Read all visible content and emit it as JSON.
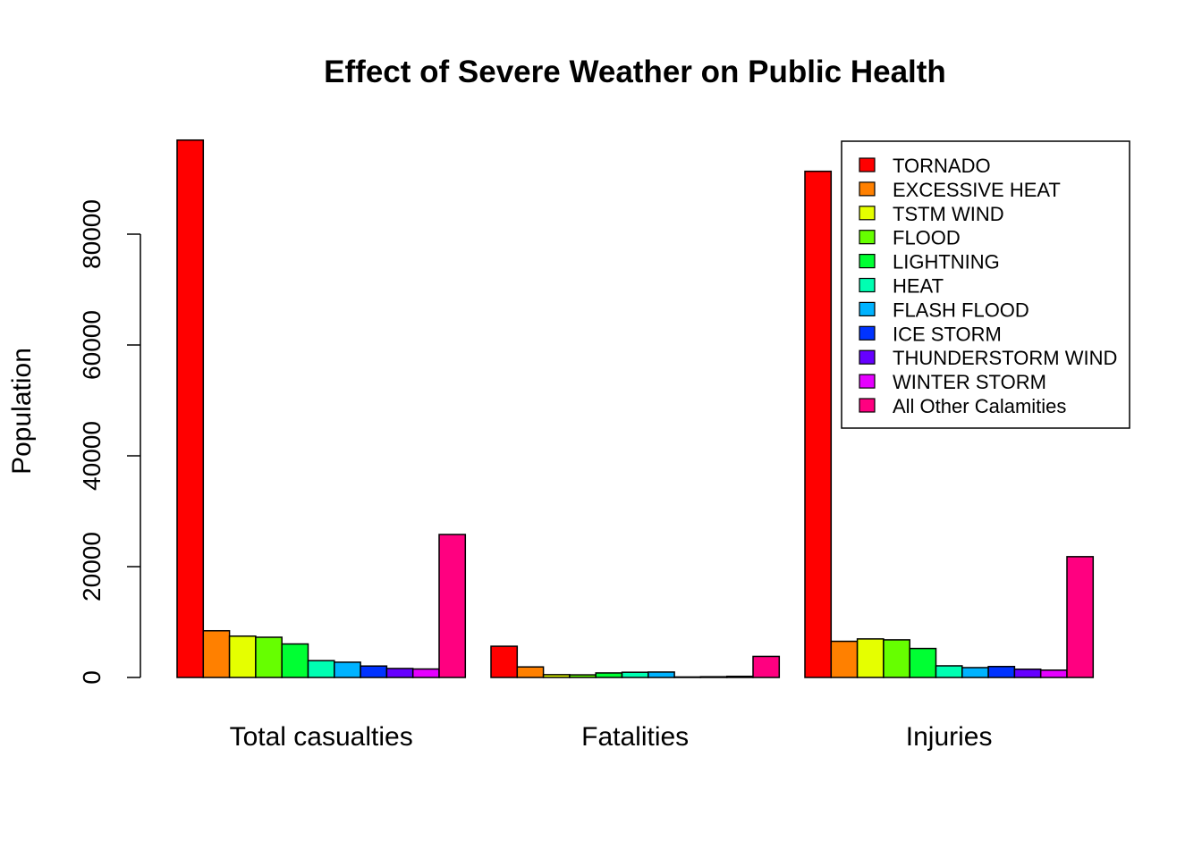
{
  "chart_data": {
    "type": "bar",
    "title": "Effect of Severe Weather on Public Health",
    "xlabel": "",
    "ylabel": "Population",
    "ylim": [
      0,
      97000
    ],
    "yticks": [
      0,
      20000,
      40000,
      60000,
      80000
    ],
    "ytick_labels": [
      "0",
      "20000",
      "40000",
      "60000",
      "80000"
    ],
    "groups": [
      "Total casualties",
      "Fatalities",
      "Injuries"
    ],
    "legend_position": "top-right",
    "grid": false,
    "series": [
      {
        "name": "TORNADO",
        "color": "#FF0000",
        "values": [
          96979,
          5633,
          91346
        ]
      },
      {
        "name": "EXCESSIVE HEAT",
        "color": "#FF8000",
        "values": [
          8428,
          1903,
          6525
        ]
      },
      {
        "name": "TSTM WIND",
        "color": "#E5FF00",
        "values": [
          7461,
          504,
          6957
        ]
      },
      {
        "name": "FLOOD",
        "color": "#66FF00",
        "values": [
          7259,
          470,
          6789
        ]
      },
      {
        "name": "LIGHTNING",
        "color": "#00FF33",
        "values": [
          6046,
          816,
          5230
        ]
      },
      {
        "name": "HEAT",
        "color": "#00FFB2",
        "values": [
          3037,
          937,
          2100
        ]
      },
      {
        "name": "FLASH FLOOD",
        "color": "#00B3FF",
        "values": [
          2755,
          978,
          1777
        ]
      },
      {
        "name": "ICE STORM",
        "color": "#0033FF",
        "values": [
          2064,
          89,
          1975
        ]
      },
      {
        "name": "THUNDERSTORM WIND",
        "color": "#6600FF",
        "values": [
          1621,
          133,
          1488
        ]
      },
      {
        "name": "WINTER STORM",
        "color": "#E500FF",
        "values": [
          1527,
          206,
          1321
        ]
      },
      {
        "name": "All Other Calamities",
        "color": "#FF0080",
        "values": [
          25800,
          3800,
          21800
        ]
      }
    ]
  }
}
